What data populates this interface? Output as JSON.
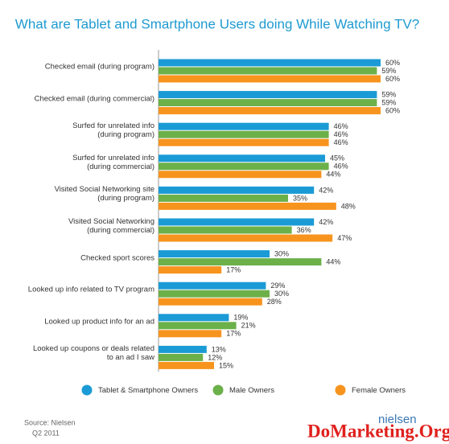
{
  "chart_data": {
    "type": "bar",
    "orientation": "horizontal",
    "title": "What are Tablet and Smartphone Users doing While Watching TV?",
    "categories": [
      "Checked email (during program)",
      "Checked email (during commercial)",
      "Surfed for unrelated info\n(during program)",
      "Surfed for unrelated info\n(during commercial)",
      "Visited Social Networking site\n(during program)",
      "Visited Social Networking\n(during commercial)",
      "Checked sport scores",
      "Looked up info related to TV program",
      "Looked up product info for an ad",
      "Looked up coupons or deals related\nto an ad I saw"
    ],
    "series": [
      {
        "name": "Tablet & Smartphone Owners",
        "color": "#1b9bd6",
        "values": [
          60,
          59,
          46,
          45,
          42,
          42,
          30,
          29,
          19,
          13
        ],
        "value_labels": [
          "60%",
          "59%",
          "46%",
          "45%",
          "42%",
          "42%",
          "30%",
          "29%",
          "19%",
          "13%"
        ]
      },
      {
        "name": "Male Owners",
        "color": "#6cb04a",
        "values": [
          59,
          59,
          46,
          46,
          35,
          36,
          44,
          30,
          21,
          12
        ],
        "value_labels": [
          "59%",
          "59%",
          "46%",
          "46%",
          "35%",
          "36%",
          "44%",
          "30%",
          "21%",
          "12%"
        ]
      },
      {
        "name": "Female Owners",
        "color": "#f7941e",
        "values": [
          60,
          60,
          46,
          44,
          48,
          47,
          17,
          28,
          17,
          15
        ],
        "value_labels": [
          "60%",
          "60%",
          "46%",
          "44%",
          "48%",
          "47%",
          "17%",
          "28%",
          "17%",
          "15%"
        ]
      }
    ],
    "source": "Source: Nielsen",
    "date": "Q2 2011",
    "logo": "nielsen",
    "watermark": "DoMarketing.Org"
  }
}
